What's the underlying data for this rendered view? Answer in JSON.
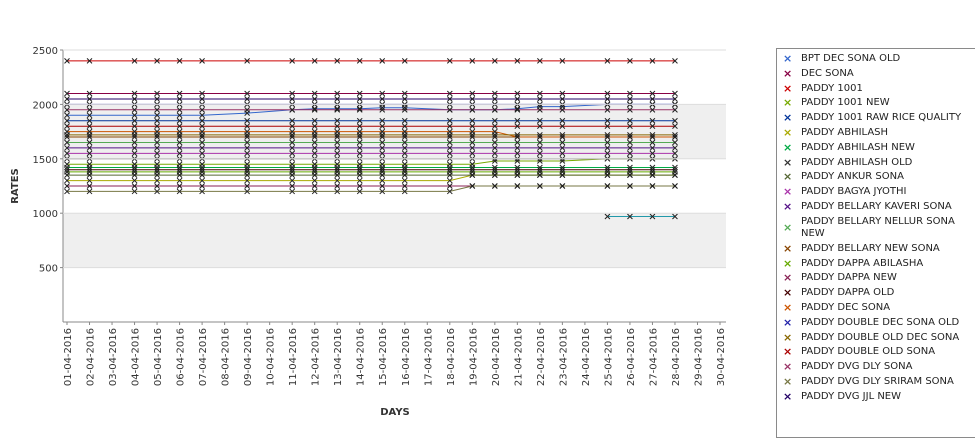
{
  "chart_data": {
    "type": "line",
    "title": "",
    "xlabel": "DAYS",
    "ylabel": "RATES",
    "ylim": [
      0,
      2500
    ],
    "yticks": [
      "500",
      "1000",
      "1500",
      "2000",
      "2500"
    ],
    "grid": false,
    "legend_position": "right",
    "bands": [
      [
        500,
        1000
      ],
      [
        1500,
        2000
      ]
    ],
    "categories": [
      "01-04-2016",
      "02-04-2016",
      "03-04-2016",
      "04-04-2016",
      "05-04-2016",
      "06-04-2016",
      "07-04-2016",
      "08-04-2016",
      "09-04-2016",
      "10-04-2016",
      "11-04-2016",
      "12-04-2016",
      "13-04-2016",
      "14-04-2016",
      "15-04-2016",
      "16-04-2016",
      "17-04-2016",
      "18-04-2016",
      "19-04-2016",
      "20-04-2016",
      "21-04-2016",
      "22-04-2016",
      "23-04-2016",
      "24-04-2016",
      "25-04-2016",
      "26-04-2016",
      "27-04-2016",
      "28-04-2016",
      "29-04-2016",
      "30-04-2016"
    ],
    "series": [
      {
        "name": "BPT DEC SONA OLD",
        "color": "#3366cc",
        "values": [
          1900,
          1900,
          null,
          1900,
          1900,
          1900,
          1900,
          null,
          1920,
          null,
          1950,
          1960,
          1960,
          1960,
          1970,
          1970,
          null,
          1950,
          1950,
          1950,
          1960,
          1980,
          1980,
          null,
          2000,
          2000,
          2000,
          2000,
          null,
          null
        ]
      },
      {
        "name": "DEC SONA",
        "color": "#880044",
        "values": [
          2100,
          2100,
          null,
          2100,
          2100,
          2100,
          2100,
          null,
          2100,
          null,
          2100,
          2100,
          2100,
          2100,
          2100,
          2100,
          null,
          2100,
          2100,
          2100,
          2100,
          2100,
          2100,
          null,
          2100,
          2100,
          2100,
          2100,
          null,
          null
        ]
      },
      {
        "name": "PADDY 1001",
        "color": "#cc0000",
        "values": [
          2400,
          2400,
          null,
          2400,
          2400,
          2400,
          2400,
          null,
          2400,
          null,
          2400,
          2400,
          2400,
          2400,
          2400,
          2400,
          null,
          2400,
          2400,
          2400,
          2400,
          2400,
          2400,
          null,
          2400,
          2400,
          2400,
          2400,
          null,
          null
        ]
      },
      {
        "name": "PADDY 1001 NEW",
        "color": "#77aa00",
        "values": [
          1450,
          1450,
          null,
          1450,
          1450,
          1450,
          1450,
          null,
          1450,
          null,
          1450,
          1450,
          1450,
          1450,
          1450,
          1450,
          null,
          1450,
          1450,
          1480,
          1480,
          1480,
          1480,
          null,
          1500,
          1500,
          1500,
          1500,
          null,
          null
        ]
      },
      {
        "name": "PADDY 1001 RAW RICE QUALITY",
        "color": "#003399",
        "values": [
          1850,
          1850,
          null,
          1850,
          1850,
          1850,
          1850,
          null,
          1850,
          null,
          1850,
          1850,
          1850,
          1850,
          1850,
          1850,
          null,
          1850,
          1850,
          1850,
          1850,
          1850,
          1850,
          null,
          1850,
          1850,
          1850,
          1850,
          null,
          null
        ]
      },
      {
        "name": "PADDY ABHILASH",
        "color": "#aaaa00",
        "values": [
          1300,
          1300,
          null,
          1300,
          1300,
          1300,
          1300,
          null,
          1300,
          null,
          1300,
          1300,
          1300,
          1300,
          1300,
          1300,
          null,
          1300,
          1350,
          1350,
          1350,
          1350,
          1350,
          null,
          1350,
          1350,
          1350,
          1350,
          null,
          null
        ]
      },
      {
        "name": "PADDY ABHILASH NEW",
        "color": "#00aa44",
        "values": [
          1420,
          1420,
          null,
          1420,
          1420,
          1420,
          1420,
          null,
          1420,
          null,
          1420,
          1420,
          1420,
          1420,
          1420,
          1420,
          null,
          1420,
          1420,
          1420,
          1420,
          1420,
          1420,
          null,
          1420,
          1420,
          1420,
          1420,
          null,
          null
        ]
      },
      {
        "name": "PADDY ABHILASH OLD",
        "color": "#333333",
        "values": [
          1500,
          1500,
          null,
          1500,
          1500,
          1500,
          1500,
          null,
          1500,
          null,
          1500,
          1500,
          1500,
          1500,
          1500,
          1500,
          null,
          1500,
          1500,
          1500,
          1500,
          1500,
          1500,
          null,
          1500,
          1500,
          1500,
          1500,
          null,
          null
        ]
      },
      {
        "name": "PADDY ANKUR SONA",
        "color": "#556633",
        "values": [
          1350,
          1350,
          null,
          1350,
          1350,
          1350,
          1350,
          null,
          1350,
          null,
          1350,
          1350,
          1350,
          1350,
          1350,
          1350,
          null,
          1350,
          1350,
          1350,
          1350,
          1350,
          1350,
          null,
          1350,
          1350,
          1350,
          1350,
          null,
          null
        ]
      },
      {
        "name": "PADDY BAGYA JYOTHI",
        "color": "#aa33aa",
        "values": [
          1550,
          1550,
          null,
          1550,
          1550,
          1550,
          1550,
          null,
          1550,
          null,
          1550,
          1550,
          1550,
          1550,
          1550,
          1550,
          null,
          1550,
          1550,
          1550,
          1550,
          1550,
          1550,
          null,
          1550,
          1550,
          1550,
          1550,
          null,
          null
        ]
      },
      {
        "name": "PADDY BELLARY KAVERI SONA",
        "color": "#551188",
        "values": [
          1600,
          1600,
          null,
          1600,
          1600,
          1600,
          1600,
          null,
          1600,
          null,
          1600,
          1600,
          1600,
          1600,
          1600,
          1600,
          null,
          1600,
          1600,
          1600,
          1600,
          1600,
          1600,
          null,
          1600,
          1600,
          1600,
          1600,
          null,
          null
        ]
      },
      {
        "name": "PADDY BELLARY NELLUR SONA NEW",
        "color": "#55aa55",
        "values": [
          1650,
          1650,
          null,
          1650,
          1650,
          1650,
          1650,
          null,
          1650,
          null,
          1650,
          1650,
          1650,
          1650,
          1650,
          1650,
          null,
          1650,
          1650,
          1650,
          1650,
          1650,
          1650,
          null,
          1650,
          1650,
          1650,
          1650,
          null,
          null
        ]
      },
      {
        "name": "PADDY BELLARY NEW SONA",
        "color": "#884400",
        "values": [
          1700,
          1700,
          null,
          1700,
          1700,
          1700,
          1700,
          null,
          1700,
          null,
          1700,
          1700,
          1700,
          1700,
          1700,
          1700,
          null,
          1700,
          1700,
          1700,
          1700,
          1700,
          1700,
          null,
          1700,
          1700,
          1700,
          1700,
          null,
          null
        ]
      },
      {
        "name": "PADDY DAPPA ABILASHA",
        "color": "#66aa00",
        "values": [
          1380,
          1380,
          null,
          1380,
          1380,
          1380,
          1380,
          null,
          1380,
          null,
          1380,
          1380,
          1380,
          1380,
          1380,
          1380,
          null,
          1380,
          1380,
          1380,
          1380,
          1380,
          1380,
          null,
          1380,
          1380,
          1380,
          1380,
          null,
          null
        ]
      },
      {
        "name": "PADDY DAPPA NEW",
        "color": "#882255",
        "values": [
          1250,
          1250,
          null,
          1250,
          1250,
          1250,
          1250,
          null,
          1250,
          null,
          1250,
          1250,
          1250,
          1250,
          1250,
          1250,
          null,
          1250,
          1250,
          1250,
          1250,
          1250,
          1250,
          null,
          1250,
          1250,
          1250,
          1250,
          null,
          null
        ]
      },
      {
        "name": "PADDY DAPPA OLD",
        "color": "#440000",
        "values": [
          1400,
          1400,
          null,
          1400,
          1400,
          1400,
          1400,
          null,
          1400,
          null,
          1400,
          1400,
          1400,
          1400,
          1400,
          1400,
          null,
          1400,
          1400,
          1400,
          1400,
          1400,
          1400,
          null,
          1400,
          1400,
          1400,
          1400,
          null,
          null
        ]
      },
      {
        "name": "PADDY DEC SONA",
        "color": "#cc5500",
        "values": [
          1750,
          1750,
          null,
          1750,
          1750,
          1750,
          1750,
          null,
          1750,
          null,
          1750,
          1750,
          1750,
          1750,
          1750,
          1750,
          null,
          1750,
          1750,
          1750,
          1700,
          1700,
          1700,
          null,
          1700,
          1700,
          1700,
          1700,
          null,
          null
        ]
      },
      {
        "name": "PADDY DOUBLE DEC SONA OLD",
        "color": "#2222aa",
        "values": [
          2000,
          2000,
          null,
          2000,
          2000,
          2000,
          2000,
          null,
          2000,
          null,
          2000,
          2000,
          2000,
          2000,
          2000,
          2000,
          null,
          2000,
          2000,
          2000,
          2000,
          2000,
          2000,
          null,
          2000,
          2000,
          2000,
          2000,
          null,
          null
        ]
      },
      {
        "name": "PADDY DOUBLE OLD DEC SONA",
        "color": "#886600",
        "values": [
          1720,
          1720,
          null,
          1720,
          1720,
          1720,
          1720,
          null,
          1720,
          null,
          1720,
          1720,
          1720,
          1720,
          1720,
          1720,
          null,
          1720,
          1720,
          1720,
          1720,
          1720,
          1720,
          null,
          1720,
          1720,
          1720,
          1720,
          null,
          null
        ]
      },
      {
        "name": "PADDY DOUBLE OLD SONA",
        "color": "#aa0000",
        "values": [
          1800,
          1800,
          null,
          1800,
          1800,
          1800,
          1800,
          null,
          1800,
          null,
          1800,
          1800,
          1800,
          1800,
          1800,
          1800,
          null,
          1800,
          1800,
          1800,
          1800,
          1800,
          1800,
          null,
          1800,
          1800,
          1800,
          1800,
          null,
          null
        ]
      },
      {
        "name": "PADDY DVG DLY SONA",
        "color": "#993366",
        "values": [
          1950,
          1950,
          null,
          1950,
          1950,
          1950,
          1950,
          null,
          1950,
          null,
          1950,
          1950,
          1950,
          1950,
          1950,
          1950,
          null,
          1950,
          1950,
          1950,
          1950,
          1950,
          1950,
          null,
          1950,
          1950,
          1950,
          1950,
          null,
          null
        ]
      },
      {
        "name": "PADDY DVG DLY SRIRAM SONA",
        "color": "#777744",
        "values": [
          1200,
          1200,
          null,
          1200,
          1200,
          1200,
          1200,
          null,
          1200,
          null,
          1200,
          1200,
          1200,
          1200,
          1200,
          1200,
          null,
          1200,
          1250,
          1250,
          1250,
          1250,
          1250,
          null,
          1250,
          1250,
          1250,
          1250,
          null,
          null
        ]
      },
      {
        "name": "PADDY DVG JJL NEW",
        "color": "#220066",
        "values": [
          2050,
          2050,
          null,
          2050,
          2050,
          2050,
          2050,
          null,
          2050,
          null,
          2050,
          2050,
          2050,
          2050,
          2050,
          2050,
          null,
          2050,
          2050,
          2050,
          2050,
          2050,
          2050,
          null,
          2050,
          2050,
          2050,
          2050,
          null,
          null
        ]
      },
      {
        "name": "",
        "color": "#2299aa",
        "values": [
          null,
          null,
          null,
          null,
          null,
          null,
          null,
          null,
          null,
          null,
          null,
          null,
          null,
          null,
          null,
          null,
          null,
          null,
          null,
          null,
          null,
          null,
          null,
          null,
          970,
          970,
          970,
          970,
          null,
          null
        ]
      }
    ]
  }
}
